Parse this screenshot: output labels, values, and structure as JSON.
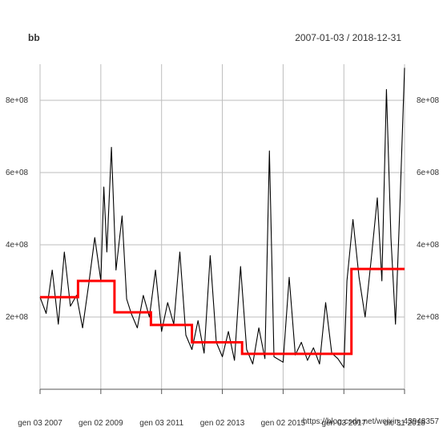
{
  "chart_data": {
    "type": "line",
    "title": "bb",
    "date_range_label": "2007-01-03 / 2018-12-31",
    "x_tick_labels": [
      "gen 03 2007",
      "gen 02 2009",
      "gen 03 2011",
      "gen 02 2013",
      "gen 02 2015",
      "gen 03 2017",
      "dic 31 2018"
    ],
    "x_tick_years": [
      2007.0,
      2009.0,
      2011.0,
      2013.0,
      2015.0,
      2017.0,
      2018.997
    ],
    "y_tick_labels": [
      "2e+08",
      "4e+08",
      "6e+08",
      "8e+08"
    ],
    "y_tick_values": [
      200000000,
      400000000,
      600000000,
      800000000
    ],
    "xlim": [
      2007.0,
      2018.997
    ],
    "ylim": [
      0,
      900000000
    ],
    "grid": true,
    "series": [
      {
        "color": "#000000",
        "points": [
          [
            2007.0,
            255000000
          ],
          [
            2007.2,
            210000000
          ],
          [
            2007.4,
            330000000
          ],
          [
            2007.6,
            180000000
          ],
          [
            2007.8,
            380000000
          ],
          [
            2008.0,
            230000000
          ],
          [
            2008.2,
            260000000
          ],
          [
            2008.4,
            170000000
          ],
          [
            2008.6,
            290000000
          ],
          [
            2008.8,
            420000000
          ],
          [
            2009.0,
            300000000
          ],
          [
            2009.1,
            560000000
          ],
          [
            2009.2,
            380000000
          ],
          [
            2009.35,
            670000000
          ],
          [
            2009.5,
            330000000
          ],
          [
            2009.7,
            480000000
          ],
          [
            2009.85,
            250000000
          ],
          [
            2010.0,
            210000000
          ],
          [
            2010.2,
            170000000
          ],
          [
            2010.4,
            260000000
          ],
          [
            2010.6,
            200000000
          ],
          [
            2010.8,
            330000000
          ],
          [
            2011.0,
            160000000
          ],
          [
            2011.2,
            240000000
          ],
          [
            2011.4,
            180000000
          ],
          [
            2011.6,
            380000000
          ],
          [
            2011.8,
            150000000
          ],
          [
            2012.0,
            110000000
          ],
          [
            2012.2,
            190000000
          ],
          [
            2012.4,
            100000000
          ],
          [
            2012.6,
            370000000
          ],
          [
            2012.8,
            130000000
          ],
          [
            2013.0,
            90000000
          ],
          [
            2013.2,
            160000000
          ],
          [
            2013.4,
            80000000
          ],
          [
            2013.6,
            340000000
          ],
          [
            2013.8,
            110000000
          ],
          [
            2014.0,
            70000000
          ],
          [
            2014.2,
            170000000
          ],
          [
            2014.4,
            85000000
          ],
          [
            2014.55,
            660000000
          ],
          [
            2014.7,
            90000000
          ],
          [
            2015.0,
            75000000
          ],
          [
            2015.2,
            310000000
          ],
          [
            2015.4,
            95000000
          ],
          [
            2015.6,
            130000000
          ],
          [
            2015.8,
            80000000
          ],
          [
            2016.0,
            115000000
          ],
          [
            2016.2,
            70000000
          ],
          [
            2016.4,
            240000000
          ],
          [
            2016.6,
            100000000
          ],
          [
            2016.8,
            85000000
          ],
          [
            2017.0,
            60000000
          ],
          [
            2017.1,
            300000000
          ],
          [
            2017.3,
            470000000
          ],
          [
            2017.5,
            310000000
          ],
          [
            2017.7,
            200000000
          ],
          [
            2017.9,
            360000000
          ],
          [
            2018.1,
            530000000
          ],
          [
            2018.25,
            300000000
          ],
          [
            2018.4,
            830000000
          ],
          [
            2018.55,
            420000000
          ],
          [
            2018.7,
            180000000
          ],
          [
            2018.85,
            520000000
          ],
          [
            2018.997,
            890000000
          ]
        ]
      },
      {
        "color": "#ff0000",
        "type": "step",
        "segments": [
          {
            "x": [
              2007.0,
              2008.25
            ],
            "value": 255000000
          },
          {
            "x": [
              2008.25,
              2009.45
            ],
            "value": 300000000
          },
          {
            "x": [
              2009.45,
              2010.65
            ],
            "value": 213000000
          },
          {
            "x": [
              2010.65,
              2012.0
            ],
            "value": 178000000
          },
          {
            "x": [
              2012.0,
              2013.65
            ],
            "value": 130000000
          },
          {
            "x": [
              2013.65,
              2017.25
            ],
            "value": 98000000
          },
          {
            "x": [
              2017.25,
              2018.997
            ],
            "value": 333000000
          }
        ]
      }
    ]
  },
  "watermark": "https://blog.csdn.net/weixin_43948357"
}
